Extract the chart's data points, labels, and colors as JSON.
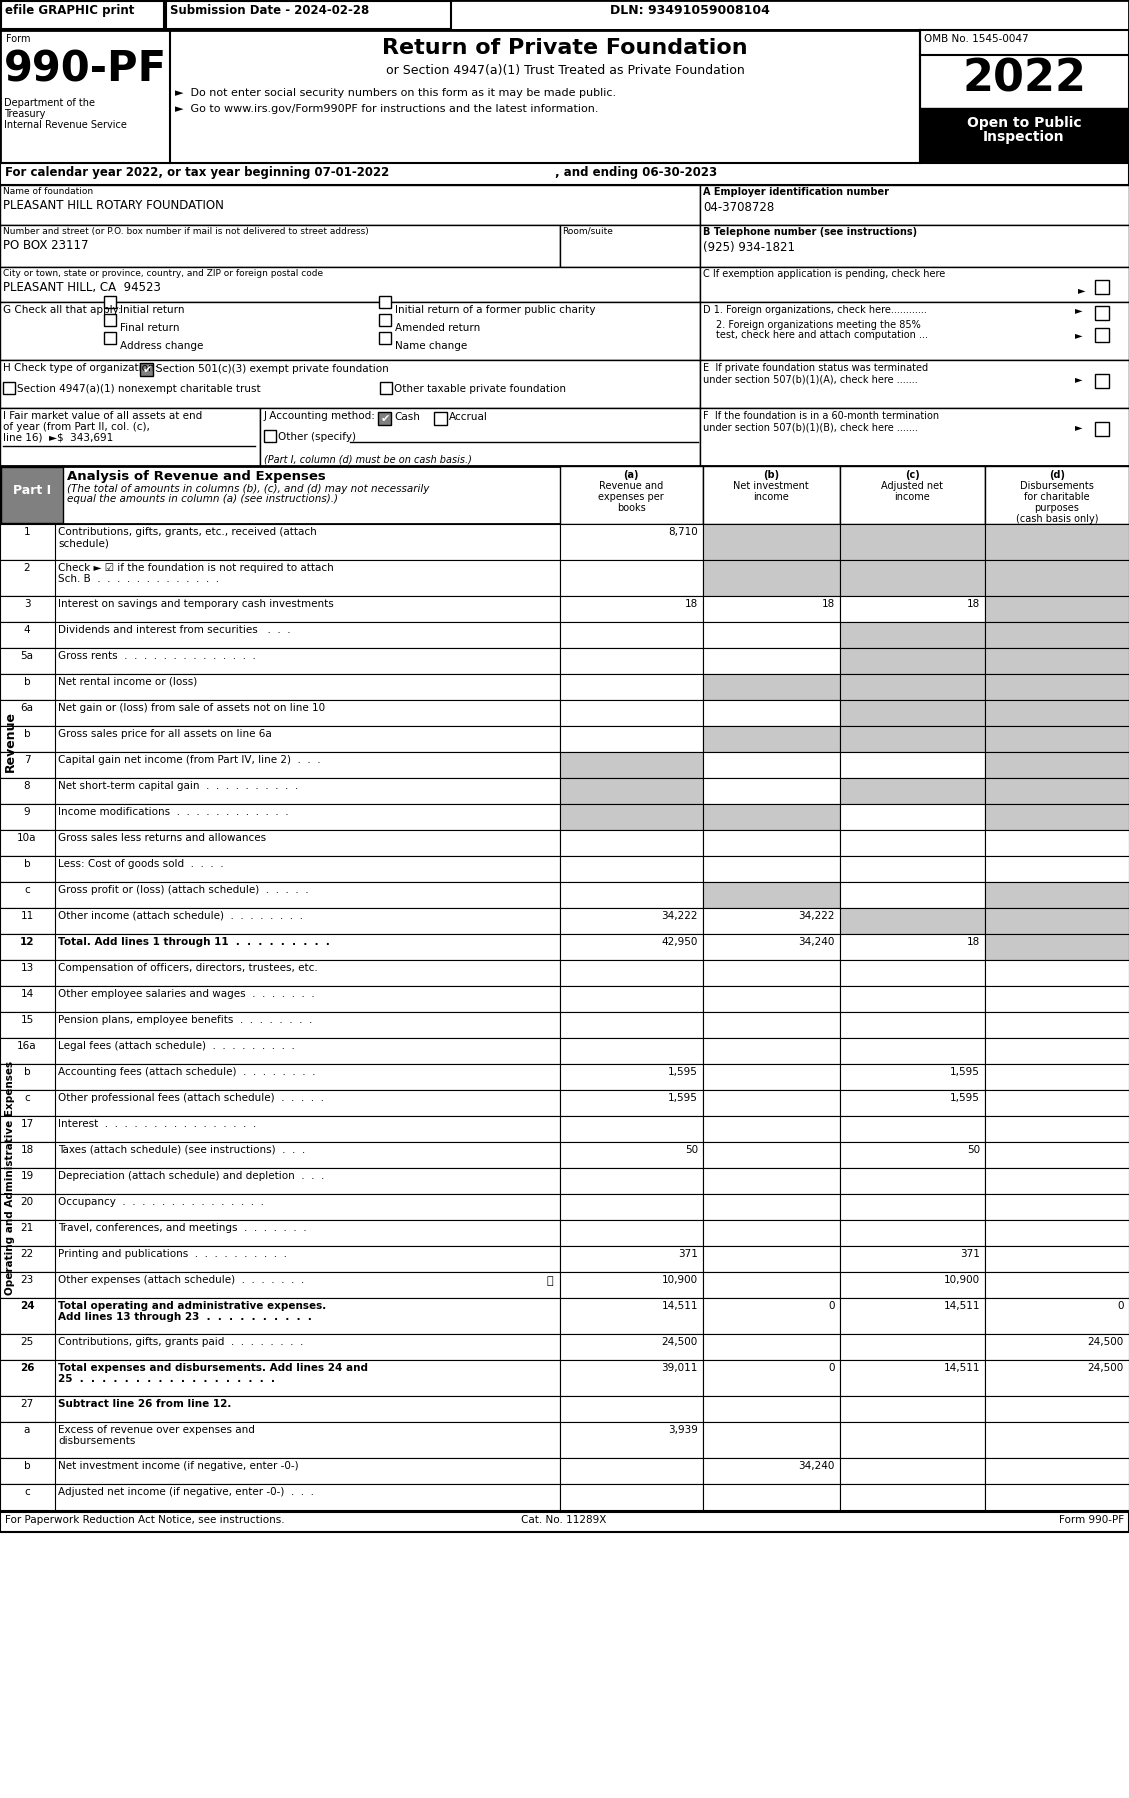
{
  "top_bar": {
    "efile": "efile GRAPHIC print",
    "submission": "Submission Date - 2024-02-28",
    "dln": "DLN: 93491059008104"
  },
  "form_header": {
    "form_label": "Form",
    "form_number": "990-PF",
    "dept1": "Department of the",
    "dept2": "Treasury",
    "dept3": "Internal Revenue Service",
    "title": "Return of Private Foundation",
    "subtitle": "or Section 4947(a)(1) Trust Treated as Private Foundation",
    "bullet1": "►  Do not enter social security numbers on this form as it may be made public.",
    "bullet2": "►  Go to www.irs.gov/Form990PF for instructions and the latest information.",
    "omb": "OMB No. 1545-0047",
    "year": "2022",
    "open_text": "Open to Public",
    "inspection_text": "Inspection"
  },
  "footer": {
    "left": "For Paperwork Reduction Act Notice, see instructions.",
    "center": "Cat. No. 11289X",
    "right": "Form 990-PF"
  }
}
